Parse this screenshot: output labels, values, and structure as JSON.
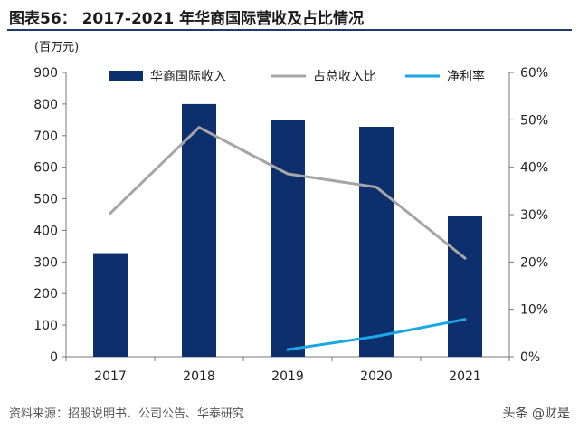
{
  "figure": {
    "title": "图表56： 2017-2021 年华商国际营收及占比情况",
    "source": "资料来源：招股说明书、公司公告、华泰研究",
    "watermark": "头条 @财是"
  },
  "chart_data": {
    "type": "bar",
    "categories": [
      "2017",
      "2018",
      "2019",
      "2020",
      "2021"
    ],
    "y_unit_label": "(百万元)",
    "ylim": [
      0,
      900
    ],
    "yticks": [
      0,
      100,
      200,
      300,
      400,
      500,
      600,
      700,
      800,
      900
    ],
    "y2lim": [
      0,
      60
    ],
    "y2ticks": [
      "0%",
      "10%",
      "20%",
      "30%",
      "40%",
      "50%",
      "60%"
    ],
    "legend_position": "top",
    "grid": false,
    "series": [
      {
        "name": "华商国际收入",
        "type": "bar",
        "axis": "left",
        "color": "#0d2f6e",
        "values": [
          328,
          800,
          750,
          728,
          447
        ]
      },
      {
        "name": "占总收入比",
        "type": "line",
        "axis": "right",
        "color": "#a6a6a6",
        "values": [
          30.3,
          48.4,
          38.6,
          35.8,
          20.8
        ]
      },
      {
        "name": "净利率",
        "type": "line",
        "axis": "right",
        "color": "#1aa7e6",
        "values": [
          null,
          null,
          1.5,
          4.3,
          7.9
        ]
      }
    ]
  }
}
